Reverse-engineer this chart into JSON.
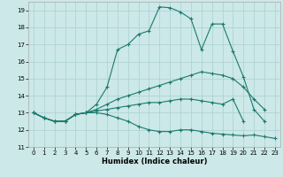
{
  "xlabel": "Humidex (Indice chaleur)",
  "bg_color": "#cce8e8",
  "grid_color": "#aad0d0",
  "line_color": "#1a7a6e",
  "xlim": [
    -0.5,
    23.5
  ],
  "ylim": [
    11,
    19.5
  ],
  "xticks": [
    0,
    1,
    2,
    3,
    4,
    5,
    6,
    7,
    8,
    9,
    10,
    11,
    12,
    13,
    14,
    15,
    16,
    17,
    18,
    19,
    20,
    21,
    22,
    23
  ],
  "yticks": [
    11,
    12,
    13,
    14,
    15,
    16,
    17,
    18,
    19
  ],
  "line1_x": [
    0,
    1,
    2,
    3,
    4,
    5,
    6,
    7,
    8,
    9,
    10,
    11,
    12,
    13,
    14,
    15,
    16,
    17,
    18,
    19,
    20,
    21,
    22,
    23
  ],
  "line1_y": [
    13.0,
    12.7,
    12.5,
    12.5,
    12.9,
    13.0,
    13.5,
    14.5,
    16.7,
    17.0,
    17.6,
    17.8,
    19.2,
    19.15,
    18.9,
    18.5,
    16.7,
    18.2,
    18.2,
    16.6,
    15.1,
    13.2,
    12.5,
    null
  ],
  "line2_x": [
    0,
    1,
    2,
    3,
    4,
    5,
    6,
    7,
    8,
    9,
    10,
    11,
    12,
    13,
    14,
    15,
    16,
    17,
    18,
    19,
    20,
    21,
    22,
    23
  ],
  "line2_y": [
    13.0,
    12.7,
    12.5,
    12.5,
    12.9,
    13.0,
    13.2,
    13.5,
    13.8,
    14.0,
    14.2,
    14.4,
    14.6,
    14.8,
    15.0,
    15.2,
    15.4,
    15.3,
    15.2,
    15.0,
    14.5,
    13.8,
    13.2,
    null
  ],
  "line3_x": [
    0,
    1,
    2,
    3,
    4,
    5,
    6,
    7,
    8,
    9,
    10,
    11,
    12,
    13,
    14,
    15,
    16,
    17,
    18,
    19,
    20,
    21,
    22,
    23
  ],
  "line3_y": [
    13.0,
    12.7,
    12.5,
    12.5,
    12.9,
    13.0,
    13.1,
    13.2,
    13.3,
    13.4,
    13.5,
    13.6,
    13.6,
    13.7,
    13.8,
    13.8,
    13.7,
    13.6,
    13.5,
    13.8,
    12.5,
    null,
    null,
    null
  ],
  "line4_x": [
    0,
    1,
    2,
    3,
    4,
    5,
    6,
    7,
    8,
    9,
    10,
    11,
    12,
    13,
    14,
    15,
    16,
    17,
    18,
    19,
    20,
    21,
    22,
    23
  ],
  "line4_y": [
    13.0,
    12.7,
    12.5,
    12.5,
    12.9,
    13.0,
    13.0,
    12.9,
    12.7,
    12.5,
    12.2,
    12.0,
    11.9,
    11.9,
    12.0,
    12.0,
    11.9,
    11.8,
    11.75,
    11.7,
    11.65,
    11.7,
    11.6,
    11.5
  ]
}
